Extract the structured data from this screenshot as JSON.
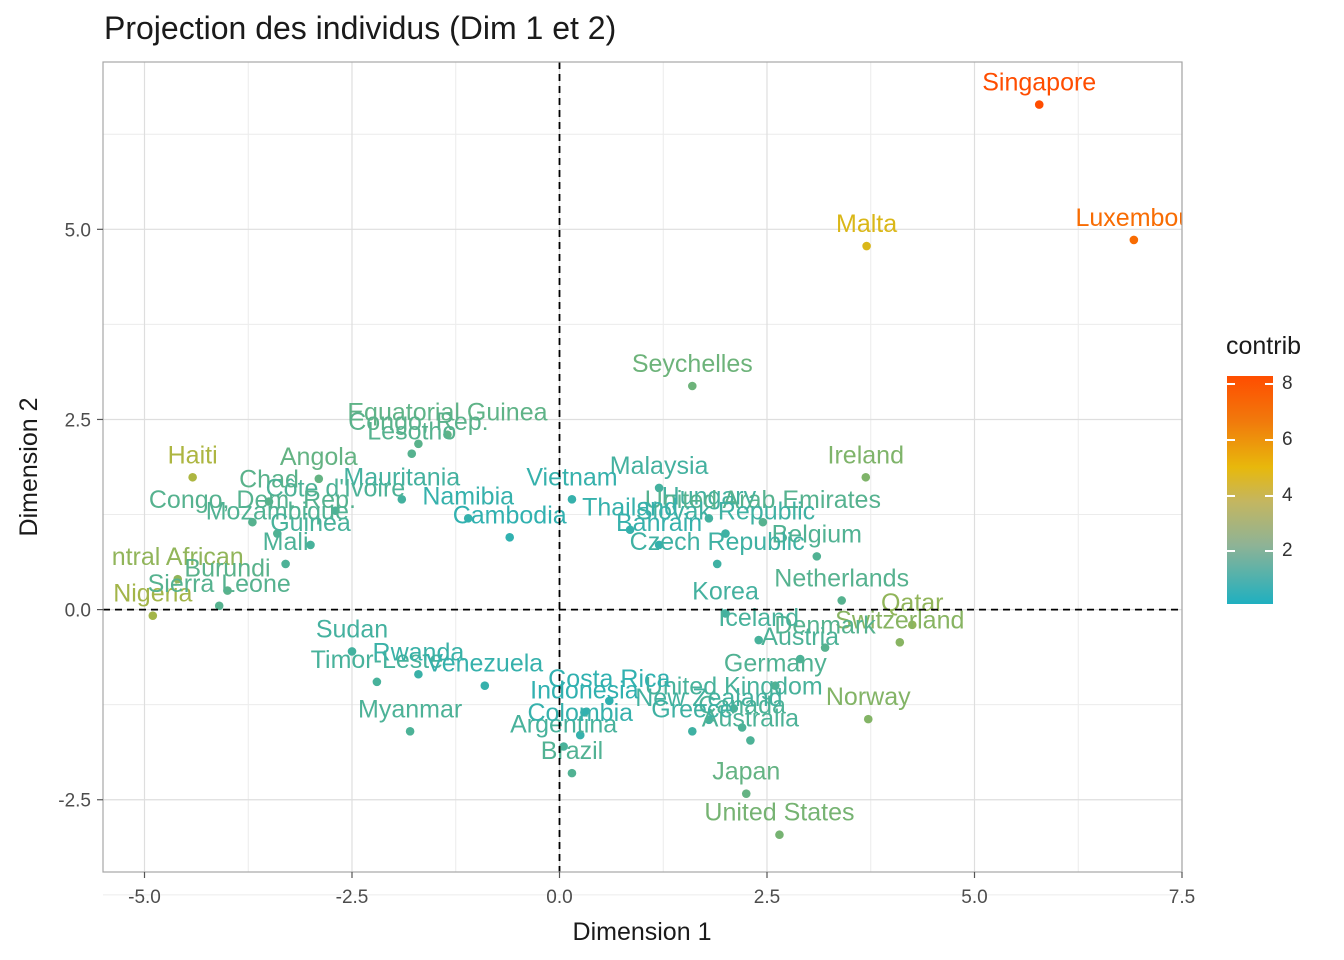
{
  "title": "Projection des individus (Dim 1 et 2)",
  "chart_data": {
    "type": "scatter",
    "title": "Projection des individus (Dim 1 et 2)",
    "xlabel": "Dimension 1",
    "ylabel": "Dimension 2",
    "xlim": [
      -5.5,
      7.5
    ],
    "ylim": [
      -3.45,
      7.2
    ],
    "xticks": [
      "-5.0",
      "-2.5",
      "0.0",
      "2.5",
      "5.0",
      "7.5"
    ],
    "yticks": [
      "-2.5",
      "0.0",
      "2.5",
      "5.0"
    ],
    "grid": true,
    "reference_lines": {
      "x": 0,
      "y": 0,
      "style": "dashed"
    },
    "color_scale": {
      "name": "contrib",
      "ticks": [
        "2",
        "4",
        "6",
        "8"
      ],
      "low_color": "#1fb0c0",
      "mid_color": "#e8b80c",
      "high_color": "#ff4d00"
    },
    "points": [
      {
        "label": "Singapore",
        "x": 5.78,
        "y": 6.64,
        "contrib": 8.0
      },
      {
        "label": "Luxembou",
        "x": 6.92,
        "y": 4.86,
        "contrib": 7.0
      },
      {
        "label": "Malta",
        "x": 3.7,
        "y": 4.78,
        "contrib": 4.2
      },
      {
        "label": "Seychelles",
        "x": 1.6,
        "y": 2.94,
        "contrib": 1.8
      },
      {
        "label": "Ireland",
        "x": 3.69,
        "y": 1.74,
        "contrib": 2.2
      },
      {
        "label": "Haiti",
        "x": -4.42,
        "y": 1.74,
        "contrib": 3.2
      },
      {
        "label": "Nigeria",
        "x": -4.9,
        "y": -0.08,
        "contrib": 3.0
      },
      {
        "label": "ntral African",
        "x": -4.6,
        "y": 0.4,
        "contrib": 2.6
      },
      {
        "label": "Qatar",
        "x": 4.25,
        "y": -0.2,
        "contrib": 2.6
      },
      {
        "label": "Switzerland",
        "x": 4.1,
        "y": -0.43,
        "contrib": 2.4
      },
      {
        "label": "Norway",
        "x": 3.72,
        "y": -1.44,
        "contrib": 2.3
      },
      {
        "label": "United States",
        "x": 2.65,
        "y": -2.96,
        "contrib": 2.0
      },
      {
        "label": "Japan",
        "x": 2.25,
        "y": -2.42,
        "contrib": 1.6
      },
      {
        "label": "Brazil",
        "x": 0.15,
        "y": -2.15,
        "contrib": 1.2
      },
      {
        "label": "Argentina",
        "x": 0.05,
        "y": -1.8,
        "contrib": 1.0
      },
      {
        "label": "Myanmar",
        "x": -1.8,
        "y": -1.6,
        "contrib": 1.1
      },
      {
        "label": "Timor-Leste",
        "x": -2.2,
        "y": -0.95,
        "contrib": 1.0
      },
      {
        "label": "Equatorial Guinea",
        "x": -1.35,
        "y": 2.3,
        "contrib": 1.5
      },
      {
        "label": "Congo, Rep.",
        "x": -1.7,
        "y": 2.18,
        "contrib": 1.4
      },
      {
        "label": "Lesotho",
        "x": -1.78,
        "y": 2.05,
        "contrib": 1.3
      },
      {
        "label": "Angola",
        "x": -2.9,
        "y": 1.72,
        "contrib": 1.6
      },
      {
        "label": "Malaysia",
        "x": 1.2,
        "y": 1.6,
        "contrib": 0.9
      },
      {
        "label": "Hungary",
        "x": 1.8,
        "y": 1.2,
        "contrib": 0.9
      },
      {
        "label": "United Arab Emirates",
        "x": 2.45,
        "y": 1.15,
        "contrib": 1.3
      },
      {
        "label": "Belgium",
        "x": 3.1,
        "y": 0.7,
        "contrib": 1.2
      },
      {
        "label": "Netherlands",
        "x": 3.4,
        "y": 0.12,
        "contrib": 1.3
      },
      {
        "label": "Denmark",
        "x": 3.2,
        "y": -0.5,
        "contrib": 1.3
      },
      {
        "label": "Germany",
        "x": 2.6,
        "y": -1.0,
        "contrib": 1.2
      },
      {
        "label": "Canada",
        "x": 2.2,
        "y": -1.55,
        "contrib": 1.1
      },
      {
        "label": "Australia",
        "x": 2.3,
        "y": -1.72,
        "contrib": 1.1
      },
      {
        "label": "Korea",
        "x": 2.0,
        "y": -0.05,
        "contrib": 0.9
      },
      {
        "label": "Iceland",
        "x": 2.4,
        "y": -0.4,
        "contrib": 1.0
      },
      {
        "label": "Austria",
        "x": 2.9,
        "y": -0.65,
        "contrib": 1.1
      },
      {
        "label": "United Kingdom",
        "x": 2.1,
        "y": -1.3,
        "contrib": 1.0
      },
      {
        "label": "New Zealand",
        "x": 1.8,
        "y": -1.45,
        "contrib": 0.9
      },
      {
        "label": "Greece",
        "x": 1.6,
        "y": -1.6,
        "contrib": 0.8
      },
      {
        "label": "Czech Republic",
        "x": 1.9,
        "y": 0.6,
        "contrib": 0.8
      },
      {
        "label": "Slovak Republic",
        "x": 2.0,
        "y": 1.0,
        "contrib": 0.8
      },
      {
        "label": "Thailand",
        "x": 0.85,
        "y": 1.05,
        "contrib": 0.6
      },
      {
        "label": "Vietnam",
        "x": 0.15,
        "y": 1.45,
        "contrib": 0.6
      },
      {
        "label": "Mauritania",
        "x": -1.9,
        "y": 1.45,
        "contrib": 0.9
      },
      {
        "label": "Chad",
        "x": -3.5,
        "y": 1.42,
        "contrib": 1.4
      },
      {
        "label": "Côte d'Ivoire",
        "x": -2.7,
        "y": 1.3,
        "contrib": 1.1
      },
      {
        "label": "Congo, Dem. Rep.",
        "x": -3.7,
        "y": 1.15,
        "contrib": 1.3
      },
      {
        "label": "Mozambique",
        "x": -3.4,
        "y": 1.0,
        "contrib": 1.2
      },
      {
        "label": "Guinea",
        "x": -3.0,
        "y": 0.85,
        "contrib": 1.0
      },
      {
        "label": "Mali",
        "x": -3.3,
        "y": 0.6,
        "contrib": 1.1
      },
      {
        "label": "Burundi",
        "x": -4.0,
        "y": 0.25,
        "contrib": 1.4
      },
      {
        "label": "Sierra Leone",
        "x": -4.1,
        "y": 0.05,
        "contrib": 1.3
      },
      {
        "label": "Sudan",
        "x": -2.5,
        "y": -0.55,
        "contrib": 0.9
      },
      {
        "label": "Rwanda",
        "x": -1.7,
        "y": -0.85,
        "contrib": 0.7
      },
      {
        "label": "Venezuela",
        "x": -0.9,
        "y": -1.0,
        "contrib": 0.6
      },
      {
        "label": "Cambodia",
        "x": -0.6,
        "y": 0.95,
        "contrib": 0.5
      },
      {
        "label": "Namibia",
        "x": -1.1,
        "y": 1.2,
        "contrib": 0.6
      },
      {
        "label": "Costa Rica",
        "x": 0.6,
        "y": -1.2,
        "contrib": 0.5
      },
      {
        "label": "Indonesia",
        "x": 0.3,
        "y": -1.35,
        "contrib": 0.5
      },
      {
        "label": "Bahrain",
        "x": 1.2,
        "y": 0.85,
        "contrib": 0.6
      },
      {
        "label": "Colombia",
        "x": 0.25,
        "y": -1.65,
        "contrib": 0.6
      }
    ]
  }
}
